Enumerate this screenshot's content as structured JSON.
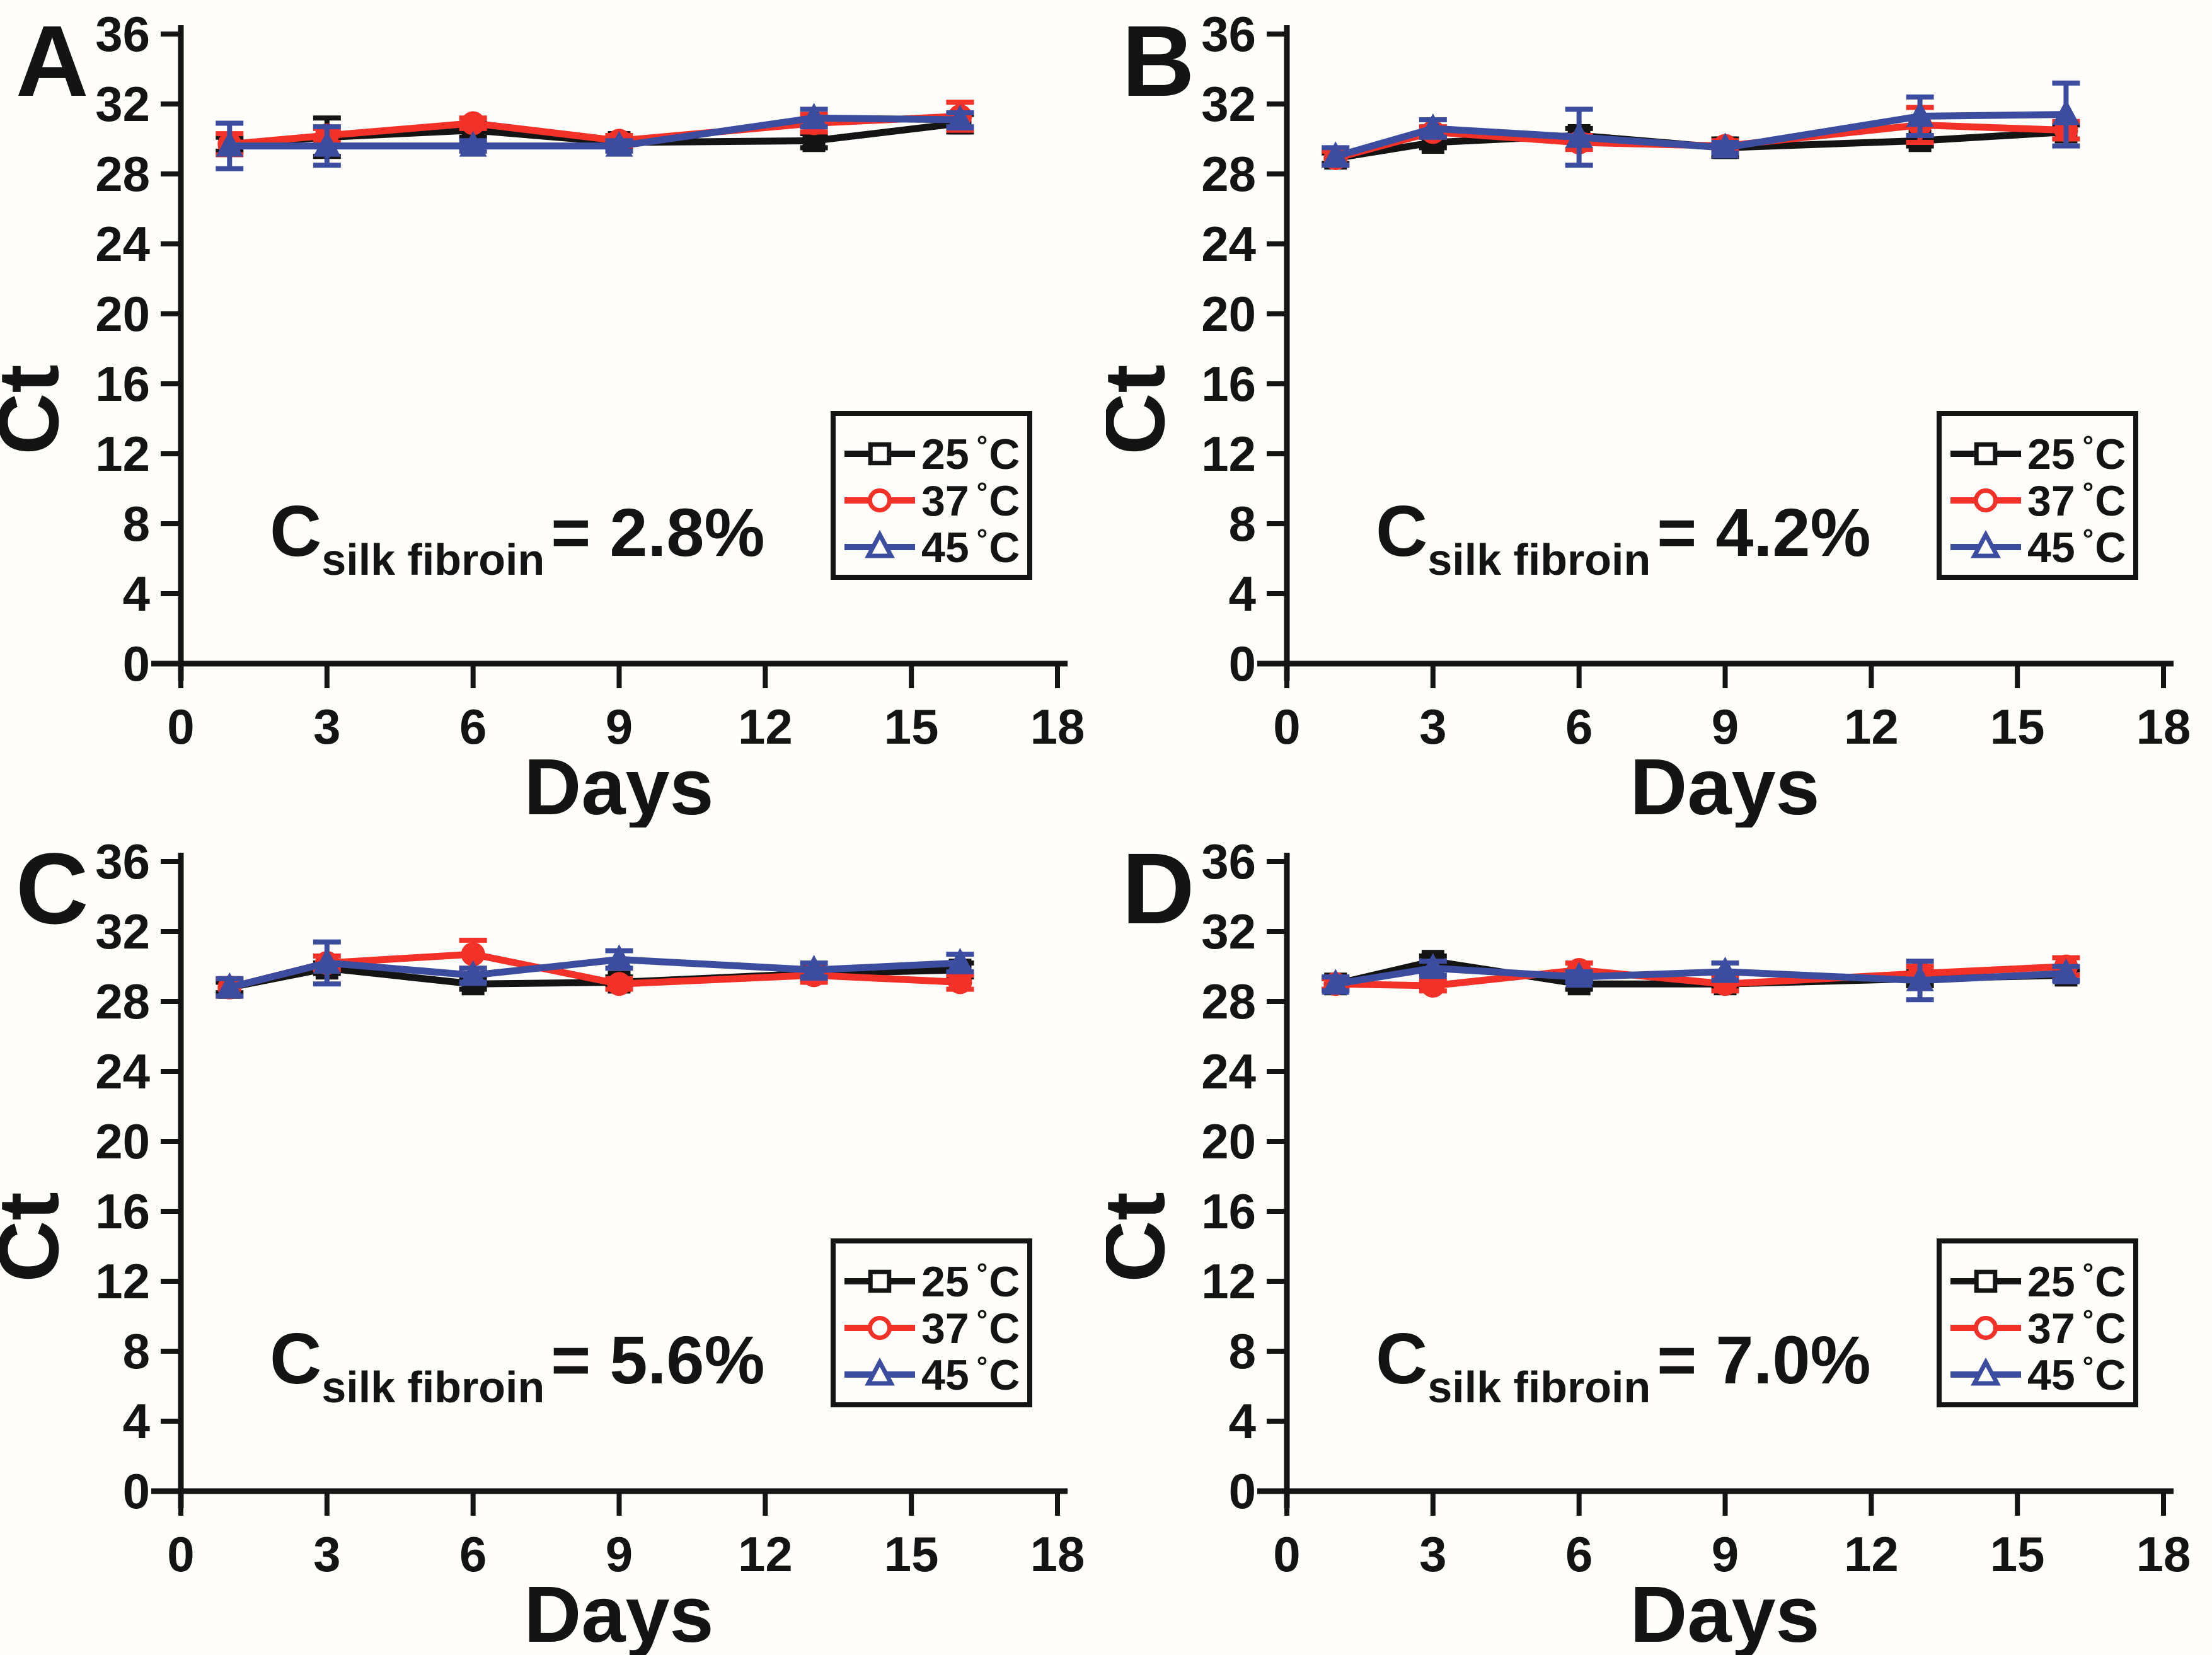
{
  "figure": {
    "background": "#fffefa",
    "axis_color": "#141414",
    "degree": "°",
    "unit_c": "C"
  },
  "chart_data": [
    {
      "type": "line",
      "panel": "A",
      "annotation": {
        "symbol": "C",
        "subscript": "silk fibroin",
        "value": "= 2.8%"
      },
      "xlabel": "Days",
      "ylabel": "Ct",
      "xlim": [
        0,
        18
      ],
      "ylim": [
        0,
        36
      ],
      "xticks": [
        0,
        3,
        6,
        9,
        12,
        15,
        18
      ],
      "yticks": [
        0,
        4,
        8,
        12,
        16,
        20,
        24,
        28,
        32,
        36
      ],
      "x": [
        1,
        3,
        6,
        9,
        13,
        16
      ],
      "grid": false,
      "legend_position": "right-middle",
      "series": [
        {
          "name": "25 °C",
          "label": "25",
          "color": "#141414",
          "marker": "square",
          "values": [
            29.7,
            30.1,
            30.5,
            29.8,
            29.9,
            30.9
          ],
          "errors": [
            0.4,
            1.1,
            0.4,
            0.3,
            0.4,
            0.5
          ]
        },
        {
          "name": "37 °C",
          "label": "37",
          "color": "#f23229",
          "marker": "circle",
          "values": [
            29.7,
            30.2,
            30.9,
            29.9,
            30.9,
            31.3
          ],
          "errors": [
            0.6,
            0.4,
            0.3,
            0.3,
            0.5,
            0.8
          ]
        },
        {
          "name": "45 °C",
          "label": "45",
          "color": "#3c4da0",
          "marker": "triangle",
          "values": [
            29.6,
            29.6,
            29.6,
            29.6,
            31.2,
            31.1
          ],
          "errors": [
            1.3,
            1.1,
            0.3,
            0.3,
            0.5,
            0.4
          ]
        }
      ]
    },
    {
      "type": "line",
      "panel": "B",
      "annotation": {
        "symbol": "C",
        "subscript": "silk fibroin",
        "value": "= 4.2%"
      },
      "xlabel": "Days",
      "ylabel": "Ct",
      "xlim": [
        0,
        18
      ],
      "ylim": [
        0,
        36
      ],
      "xticks": [
        0,
        3,
        6,
        9,
        12,
        15,
        18
      ],
      "yticks": [
        0,
        4,
        8,
        12,
        16,
        20,
        24,
        28,
        32,
        36
      ],
      "x": [
        1,
        3,
        6,
        9,
        13,
        16
      ],
      "grid": false,
      "legend_position": "right-middle",
      "series": [
        {
          "name": "25 °C",
          "label": "25",
          "color": "#141414",
          "marker": "square",
          "values": [
            28.9,
            29.8,
            30.2,
            29.5,
            29.9,
            30.4
          ],
          "errors": [
            0.3,
            0.3,
            0.4,
            0.5,
            0.3,
            0.4
          ]
        },
        {
          "name": "37 °C",
          "label": "37",
          "color": "#f23229",
          "marker": "circle",
          "values": [
            28.9,
            30.4,
            29.8,
            29.6,
            30.8,
            30.5
          ],
          "errors": [
            0.4,
            0.3,
            0.4,
            0.3,
            1.0,
            0.5
          ]
        },
        {
          "name": "45 °C",
          "label": "45",
          "color": "#3c4da0",
          "marker": "triangle",
          "values": [
            29.0,
            30.6,
            30.1,
            29.5,
            31.3,
            31.4
          ],
          "errors": [
            0.5,
            0.5,
            1.6,
            0.3,
            1.1,
            1.8
          ]
        }
      ]
    },
    {
      "type": "line",
      "panel": "C",
      "annotation": {
        "symbol": "C",
        "subscript": "silk fibroin",
        "value": "= 5.6%"
      },
      "xlabel": "Days",
      "ylabel": "Ct",
      "xlim": [
        0,
        18
      ],
      "ylim": [
        0,
        36
      ],
      "xticks": [
        0,
        3,
        6,
        9,
        12,
        15,
        18
      ],
      "yticks": [
        0,
        4,
        8,
        12,
        16,
        20,
        24,
        28,
        32,
        36
      ],
      "x": [
        1,
        3,
        6,
        9,
        13,
        16
      ],
      "grid": false,
      "legend_position": "right-middle",
      "series": [
        {
          "name": "25 °C",
          "label": "25",
          "color": "#141414",
          "marker": "square",
          "values": [
            28.8,
            29.9,
            29.0,
            29.1,
            29.6,
            29.8
          ],
          "errors": [
            0.3,
            0.3,
            0.3,
            0.3,
            0.3,
            0.4
          ]
        },
        {
          "name": "37 °C",
          "label": "37",
          "color": "#f23229",
          "marker": "circle",
          "values": [
            28.8,
            30.2,
            30.7,
            29.0,
            29.5,
            29.1
          ],
          "errors": [
            0.5,
            0.4,
            0.8,
            0.3,
            0.4,
            0.4
          ]
        },
        {
          "name": "45 °C",
          "label": "45",
          "color": "#3c4da0",
          "marker": "triangle",
          "values": [
            28.8,
            30.2,
            29.5,
            30.4,
            29.8,
            30.2
          ],
          "errors": [
            0.5,
            1.2,
            0.4,
            0.5,
            0.4,
            0.5
          ]
        }
      ]
    },
    {
      "type": "line",
      "panel": "D",
      "annotation": {
        "symbol": "C",
        "subscript": "silk fibroin",
        "value": "= 7.0%"
      },
      "xlabel": "Days",
      "ylabel": "Ct",
      "xlim": [
        0,
        18
      ],
      "ylim": [
        0,
        36
      ],
      "xticks": [
        0,
        3,
        6,
        9,
        12,
        15,
        18
      ],
      "yticks": [
        0,
        4,
        8,
        12,
        16,
        20,
        24,
        28,
        32,
        36
      ],
      "x": [
        1,
        3,
        6,
        9,
        13,
        16
      ],
      "grid": false,
      "legend_position": "right-middle",
      "series": [
        {
          "name": "25 °C",
          "label": "25",
          "color": "#141414",
          "marker": "square",
          "values": [
            29.0,
            30.3,
            29.0,
            29.0,
            29.3,
            29.5
          ],
          "errors": [
            0.3,
            0.3,
            0.3,
            0.2,
            0.4,
            0.3
          ]
        },
        {
          "name": "37 °C",
          "label": "37",
          "color": "#f23229",
          "marker": "circle",
          "values": [
            29.0,
            28.9,
            29.8,
            29.0,
            29.6,
            30.0
          ],
          "errors": [
            0.3,
            0.3,
            0.4,
            0.4,
            0.4,
            0.5
          ]
        },
        {
          "name": "45 °C",
          "label": "45",
          "color": "#3c4da0",
          "marker": "triangle",
          "values": [
            29.0,
            29.9,
            29.4,
            29.7,
            29.2,
            29.6
          ],
          "errors": [
            0.4,
            0.4,
            0.3,
            0.5,
            1.1,
            0.4
          ]
        }
      ]
    }
  ]
}
